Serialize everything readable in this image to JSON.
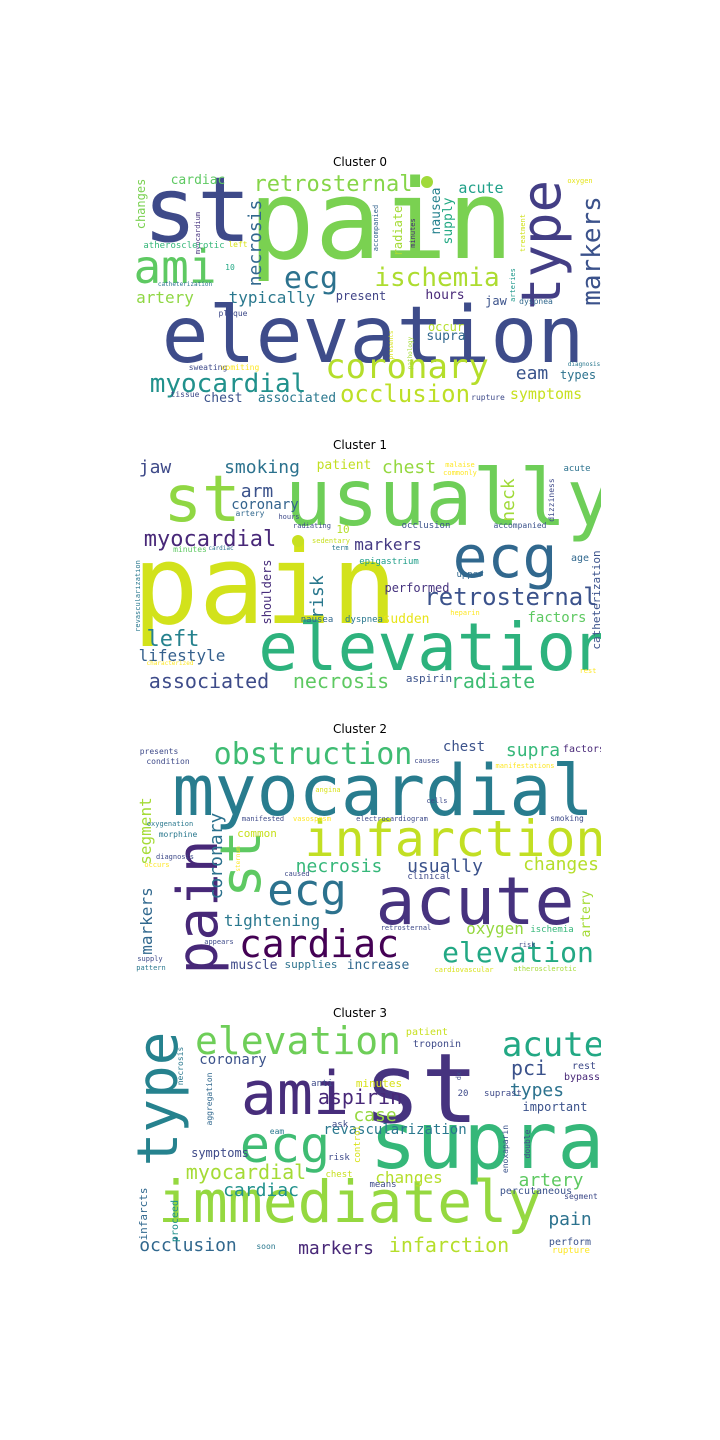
{
  "clusters": [
    {
      "title": "Cluster 0",
      "words": [
        {
          "text": "pain",
          "color": "#7ad151"
        },
        {
          "text": "elevation",
          "color": "#3e4c8a"
        },
        {
          "text": "st",
          "color": "#3e4a89"
        },
        {
          "text": "ami",
          "color": "#5ec962"
        },
        {
          "text": "type",
          "color": "#433e85"
        },
        {
          "text": "coronary",
          "color": "#b5de2b"
        },
        {
          "text": "ecg",
          "color": "#2c728e"
        },
        {
          "text": "ischemia",
          "color": "#addc30"
        },
        {
          "text": "retrosternal",
          "color": "#86d549"
        },
        {
          "text": "markers",
          "color": "#3b528b"
        },
        {
          "text": "myocardial",
          "color": "#21918c"
        },
        {
          "text": "occlusion",
          "color": "#bddf26"
        },
        {
          "text": "necrosis",
          "color": "#31688e"
        },
        {
          "text": "typically",
          "color": "#2a788e"
        },
        {
          "text": "artery",
          "color": "#8fd744"
        },
        {
          "text": "acute",
          "color": "#1fa088"
        },
        {
          "text": "eam",
          "color": "#3a548c"
        },
        {
          "text": "symptoms",
          "color": "#c8e020"
        },
        {
          "text": "chest",
          "color": "#3b528b"
        },
        {
          "text": "associated",
          "color": "#2a788e"
        },
        {
          "text": "cardiac",
          "color": "#5ec962"
        },
        {
          "text": "changes",
          "color": "#7ad151"
        },
        {
          "text": "nausea",
          "color": "#26828e"
        },
        {
          "text": "supply",
          "color": "#23a983"
        },
        {
          "text": "hours",
          "color": "#482878"
        },
        {
          "text": "present",
          "color": "#414487"
        },
        {
          "text": "supra",
          "color": "#31688e"
        },
        {
          "text": "occur",
          "color": "#b5de2b"
        },
        {
          "text": "types",
          "color": "#2c728e"
        },
        {
          "text": "radiate",
          "color": "#a5db36"
        },
        {
          "text": "jaw",
          "color": "#3b528b"
        },
        {
          "text": "myocardium",
          "color": "#46327e"
        },
        {
          "text": "accompanied",
          "color": "#33638d"
        },
        {
          "text": "minutes",
          "color": "#482878"
        },
        {
          "text": "atherosclerotic",
          "color": "#35b779"
        },
        {
          "text": "left",
          "color": "#d8e219"
        },
        {
          "text": "10",
          "color": "#22a884"
        },
        {
          "text": "catheterization",
          "color": "#2c728e"
        },
        {
          "text": "plaque",
          "color": "#3e4a89"
        },
        {
          "text": "arteries",
          "color": "#1f988b"
        },
        {
          "text": "dyspnea",
          "color": "#31688e"
        },
        {
          "text": "sweating",
          "color": "#3e4a89"
        },
        {
          "text": "vomiting",
          "color": "#fde725"
        },
        {
          "text": "tissue",
          "color": "#3e4a89"
        },
        {
          "text": "rupture",
          "color": "#3e4a89"
        },
        {
          "text": "diagnosis",
          "color": "#2a788e"
        },
        {
          "text": "oxygen",
          "color": "#e5e419"
        },
        {
          "text": "treatment",
          "color": "#d0e11c"
        },
        {
          "text": "pathology",
          "color": "#a5db36"
        },
        {
          "text": "presents",
          "color": "#d8e219"
        }
      ]
    },
    {
      "title": "Cluster 1",
      "words": [
        {
          "text": "pain",
          "color": "#d2e21b"
        },
        {
          "text": "usually",
          "color": "#6ece58"
        },
        {
          "text": "elevation",
          "color": "#2db27d"
        },
        {
          "text": "st",
          "color": "#90d743"
        },
        {
          "text": "ecg",
          "color": "#31688e"
        },
        {
          "text": "retrosternal",
          "color": "#3b528b"
        },
        {
          "text": "myocardial",
          "color": "#482878"
        },
        {
          "text": "left",
          "color": "#26828e"
        },
        {
          "text": "associated",
          "color": "#3e4c8a"
        },
        {
          "text": "necrosis",
          "color": "#5ec962"
        },
        {
          "text": "radiate",
          "color": "#3fbc73"
        },
        {
          "text": "jaw",
          "color": "#3e4a89"
        },
        {
          "text": "smoking",
          "color": "#2c728e"
        },
        {
          "text": "chest",
          "color": "#95d840"
        },
        {
          "text": "neck",
          "color": "#a0da39"
        },
        {
          "text": "arm",
          "color": "#3b528b"
        },
        {
          "text": "coronary",
          "color": "#33638d"
        },
        {
          "text": "markers",
          "color": "#443983"
        },
        {
          "text": "risk",
          "color": "#2a788e"
        },
        {
          "text": "lifestyle",
          "color": "#35608d"
        },
        {
          "text": "factors",
          "color": "#5ec962"
        },
        {
          "text": "performed",
          "color": "#46337f"
        },
        {
          "text": "patient",
          "color": "#c2df23"
        },
        {
          "text": "shoulders",
          "color": "#472d7b"
        },
        {
          "text": "sudden",
          "color": "#e7e419"
        },
        {
          "text": "aspirin",
          "color": "#3b528b"
        },
        {
          "text": "catheterization",
          "color": "#3b528b"
        },
        {
          "text": "age",
          "color": "#31688e"
        },
        {
          "text": "dizziness",
          "color": "#3e4a89"
        },
        {
          "text": "acute",
          "color": "#2c728e"
        },
        {
          "text": "malaise",
          "color": "#fde725"
        },
        {
          "text": "commonly",
          "color": "#fde725"
        },
        {
          "text": "accompanied",
          "color": "#3b528b"
        },
        {
          "text": "occlusion",
          "color": "#3b528b"
        },
        {
          "text": "epigastrium",
          "color": "#1f9e89"
        },
        {
          "text": "upper",
          "color": "#31688e"
        },
        {
          "text": "nausea",
          "color": "#31688e"
        },
        {
          "text": "dyspnea",
          "color": "#2a788e"
        },
        {
          "text": "heparin",
          "color": "#fde725"
        },
        {
          "text": "10",
          "color": "#b5de2b"
        },
        {
          "text": "radiating",
          "color": "#3e4a89"
        },
        {
          "text": "sedentary",
          "color": "#c8e020"
        },
        {
          "text": "term",
          "color": "#2a788e"
        },
        {
          "text": "hours",
          "color": "#3e4a89"
        },
        {
          "text": "artery",
          "color": "#31688e"
        },
        {
          "text": "minutes",
          "color": "#5ec962"
        },
        {
          "text": "cardiac",
          "color": "#2c728e"
        },
        {
          "text": "revascularization",
          "color": "#2a788e"
        },
        {
          "text": "characterized",
          "color": "#fde725"
        },
        {
          "text": "rest",
          "color": "#fde725"
        }
      ]
    },
    {
      "title": "Cluster 2",
      "words": [
        {
          "text": "myocardial",
          "color": "#287c8e"
        },
        {
          "text": "infarction",
          "color": "#c2df23"
        },
        {
          "text": "acute",
          "color": "#46327e"
        },
        {
          "text": "st",
          "color": "#5ec962"
        },
        {
          "text": "pain",
          "color": "#472878"
        },
        {
          "text": "obstruction",
          "color": "#3fbc73"
        },
        {
          "text": "cardiac",
          "color": "#440154"
        },
        {
          "text": "ecg",
          "color": "#2c728e"
        },
        {
          "text": "elevation",
          "color": "#22a884"
        },
        {
          "text": "necrosis",
          "color": "#35b779"
        },
        {
          "text": "usually",
          "color": "#3b528b"
        },
        {
          "text": "changes",
          "color": "#b5de2b"
        },
        {
          "text": "coronary",
          "color": "#2c728e"
        },
        {
          "text": "tightening",
          "color": "#2a788e"
        },
        {
          "text": "oxygen",
          "color": "#95d840"
        },
        {
          "text": "markers",
          "color": "#31688e"
        },
        {
          "text": "segment",
          "color": "#a5db36"
        },
        {
          "text": "chest",
          "color": "#3b528b"
        },
        {
          "text": "supra",
          "color": "#35b779"
        },
        {
          "text": "factors",
          "color": "#482878"
        },
        {
          "text": "muscle",
          "color": "#3e4a89"
        },
        {
          "text": "supplies",
          "color": "#2c728e"
        },
        {
          "text": "increase",
          "color": "#31688e"
        },
        {
          "text": "artery",
          "color": "#a5db36"
        },
        {
          "text": "common",
          "color": "#c8e020"
        },
        {
          "text": "presents",
          "color": "#3e4a89"
        },
        {
          "text": "condition",
          "color": "#3e4a89"
        },
        {
          "text": "causes",
          "color": "#3e4a89"
        },
        {
          "text": "manifestations",
          "color": "#fde725"
        },
        {
          "text": "cells",
          "color": "#3e4a89"
        },
        {
          "text": "angina",
          "color": "#d8e219"
        },
        {
          "text": "oxygenation",
          "color": "#2a788e"
        },
        {
          "text": "manifested",
          "color": "#3e4a89"
        },
        {
          "text": "vasospasm",
          "color": "#fde725"
        },
        {
          "text": "electrocardiogram",
          "color": "#3e4a89"
        },
        {
          "text": "smoking",
          "color": "#3e4a89"
        },
        {
          "text": "morphine",
          "color": "#2a788e"
        },
        {
          "text": "occurs",
          "color": "#fde725"
        },
        {
          "text": "diagnosis",
          "color": "#3e4a89"
        },
        {
          "text": "clinical",
          "color": "#3e4a89"
        },
        {
          "text": "caused",
          "color": "#3e4a89"
        },
        {
          "text": "ischemia",
          "color": "#35b779"
        },
        {
          "text": "risk",
          "color": "#3e4a89"
        },
        {
          "text": "retrosternal",
          "color": "#3e4a89"
        },
        {
          "text": "appears",
          "color": "#3e4a89"
        },
        {
          "text": "supply",
          "color": "#3e4a89"
        },
        {
          "text": "pattern",
          "color": "#2a788e"
        },
        {
          "text": "cardiovascular",
          "color": "#d8e219"
        },
        {
          "text": "atherosclerotic",
          "color": "#a5db36"
        },
        {
          "text": "sternum",
          "color": "#fde725"
        }
      ]
    },
    {
      "title": "Cluster 3",
      "words": [
        {
          "text": "st",
          "color": "#46337f"
        },
        {
          "text": "supra",
          "color": "#35b779"
        },
        {
          "text": "immediately",
          "color": "#95d840"
        },
        {
          "text": "ami",
          "color": "#472d7b"
        },
        {
          "text": "type",
          "color": "#26828e"
        },
        {
          "text": "elevation",
          "color": "#6ece58"
        },
        {
          "text": "ecg",
          "color": "#3fbc73"
        },
        {
          "text": "acute",
          "color": "#22a884"
        },
        {
          "text": "aspirin",
          "color": "#482878"
        },
        {
          "text": "pci",
          "color": "#3b528b"
        },
        {
          "text": "types",
          "color": "#2c728e"
        },
        {
          "text": "myocardial",
          "color": "#a5db36"
        },
        {
          "text": "case",
          "color": "#95d840"
        },
        {
          "text": "revascularization",
          "color": "#2a788e"
        },
        {
          "text": "changes",
          "color": "#b5de2b"
        },
        {
          "text": "artery",
          "color": "#5ec962"
        },
        {
          "text": "cardiac",
          "color": "#21918c"
        },
        {
          "text": "pain",
          "color": "#2c728e"
        },
        {
          "text": "occlusion",
          "color": "#31688e"
        },
        {
          "text": "markers",
          "color": "#482878"
        },
        {
          "text": "infarction",
          "color": "#b5de2b"
        },
        {
          "text": "coronary",
          "color": "#3b528b"
        },
        {
          "text": "important",
          "color": "#3b528b"
        },
        {
          "text": "minutes",
          "color": "#d8e219"
        },
        {
          "text": "patient",
          "color": "#c8e020"
        },
        {
          "text": "troponin",
          "color": "#3e4a89"
        },
        {
          "text": "rest",
          "color": "#3e4a89"
        },
        {
          "text": "bypass",
          "color": "#482878"
        },
        {
          "text": "suprast",
          "color": "#3e4a89"
        },
        {
          "text": "symptoms",
          "color": "#3e4a89"
        },
        {
          "text": "infarcts",
          "color": "#31688e"
        },
        {
          "text": "proceed",
          "color": "#21918c"
        },
        {
          "text": "soon",
          "color": "#2a788e"
        },
        {
          "text": "perform",
          "color": "#3b528b"
        },
        {
          "text": "rupture",
          "color": "#fde725"
        },
        {
          "text": "percutaneous",
          "color": "#3b528b"
        },
        {
          "text": "segment",
          "color": "#3e4a89"
        },
        {
          "text": "enoxaparin",
          "color": "#3b528b"
        },
        {
          "text": "double",
          "color": "#3e4a89"
        },
        {
          "text": "means",
          "color": "#3e4a89"
        },
        {
          "text": "chest",
          "color": "#c8e020"
        },
        {
          "text": "risk",
          "color": "#3e4a89"
        },
        {
          "text": "control",
          "color": "#d8e219"
        },
        {
          "text": "ask",
          "color": "#3e4a89"
        },
        {
          "text": "eam",
          "color": "#2a788e"
        },
        {
          "text": "anti",
          "color": "#3e4a89"
        },
        {
          "text": "aggregation",
          "color": "#31688e"
        },
        {
          "text": "necrosis",
          "color": "#2a788e"
        },
        {
          "text": "dx",
          "color": "#3e4a89"
        },
        {
          "text": "20",
          "color": "#3e4a89"
        }
      ]
    }
  ]
}
